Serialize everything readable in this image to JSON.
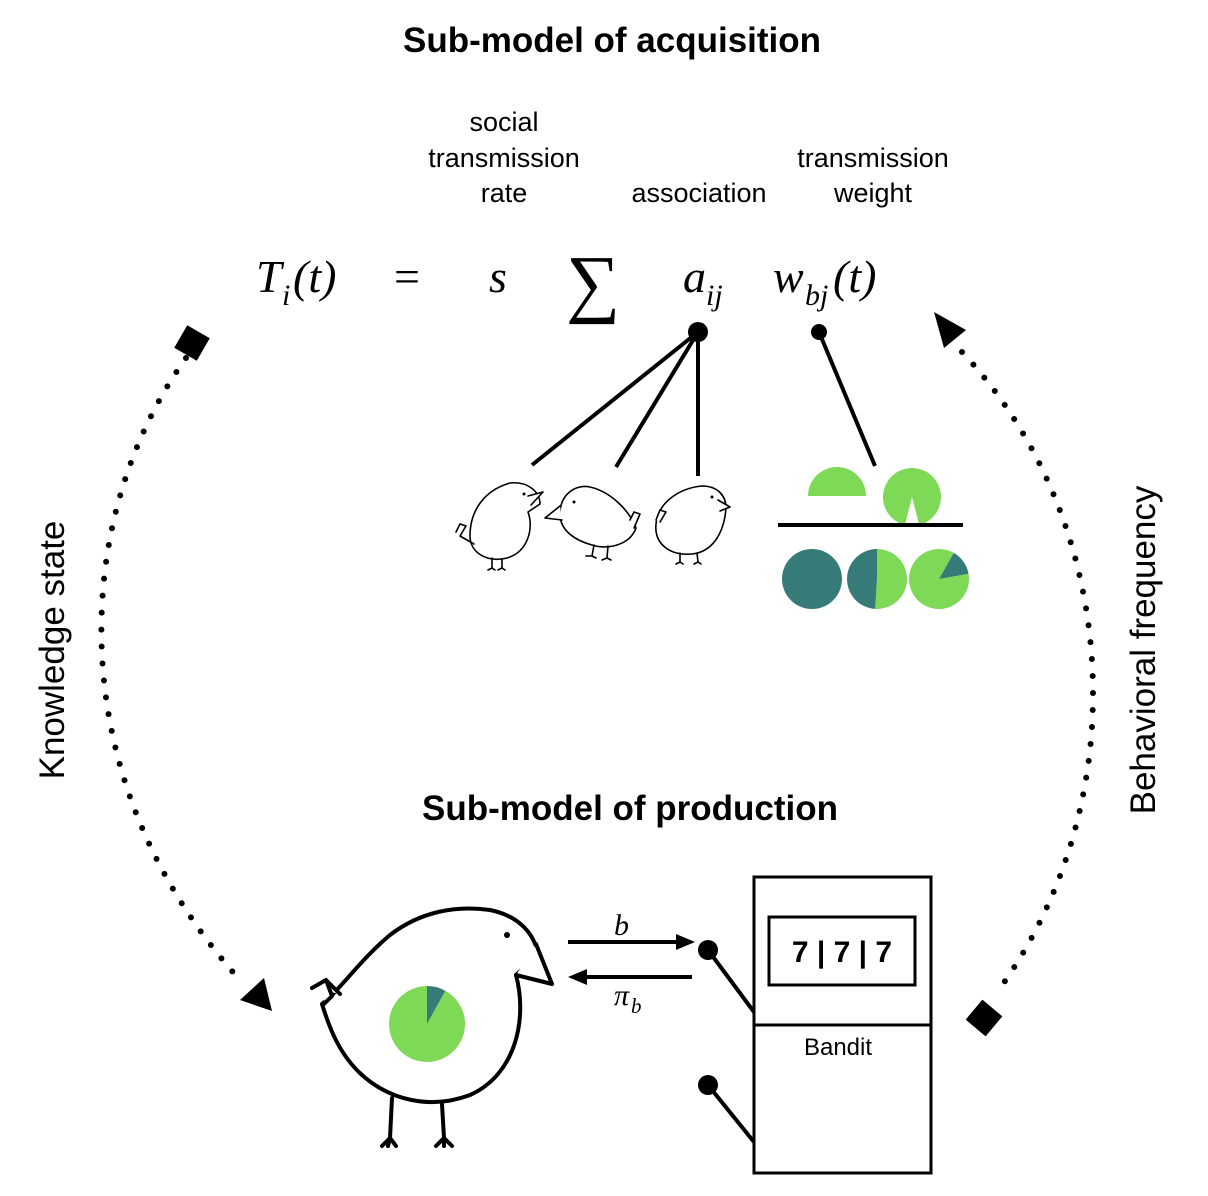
{
  "acquisition": {
    "title": "Sub-model of acquisition",
    "labels": {
      "rate_line1": "social",
      "rate_line2": "transmission",
      "rate_line3": "rate",
      "association": "association",
      "weight_line1": "transmission",
      "weight_line2": "weight"
    },
    "equation": {
      "lhs_main": "T",
      "lhs_sub": "i",
      "lhs_arg": "(t)",
      "equals": "=",
      "s": "s",
      "sum": "∑",
      "a_main": "a",
      "a_sub": "ij",
      "w_main": "w",
      "w_sub": "bj",
      "w_arg": "(t)"
    }
  },
  "production": {
    "title": "Sub-model of production",
    "arrow_out": "b",
    "arrow_in_main": "π",
    "arrow_in_sub": "b",
    "slot_display": "7 | 7 | 7",
    "bandit_label": "Bandit"
  },
  "sides": {
    "left": "Knowledge state",
    "right": "Behavioral frequency"
  },
  "colors": {
    "light_green": "#7ed957",
    "dark_teal": "#367b78"
  },
  "pies": {
    "top_half_fraction": 0.5,
    "top_notch_fraction": 0.92,
    "bottom_left_light_fraction": 0.0,
    "bottom_middle_light_fraction": 0.51,
    "bottom_right_light_fraction": 0.86,
    "big_bird_light_fraction": 0.92
  }
}
